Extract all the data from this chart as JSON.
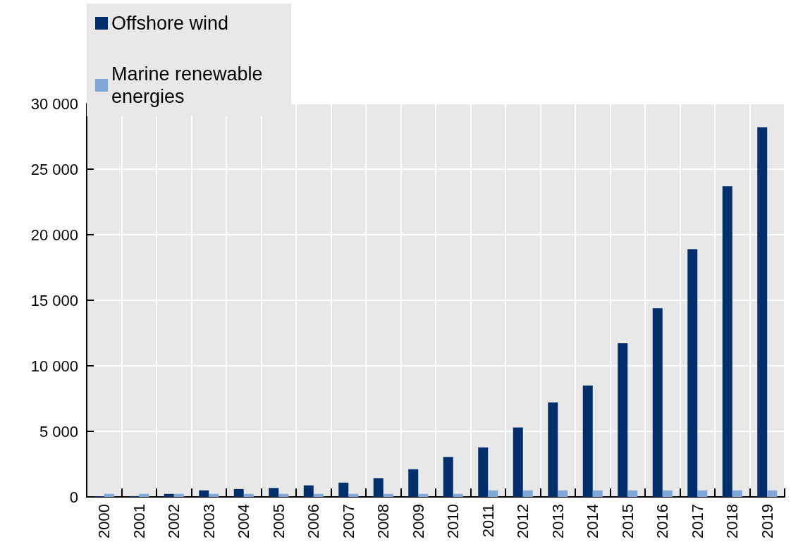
{
  "chart_data": {
    "type": "bar",
    "categories": [
      "2000",
      "2001",
      "2002",
      "2003",
      "2004",
      "2005",
      "2006",
      "2007",
      "2008",
      "2009",
      "2010",
      "2011",
      "2012",
      "2013",
      "2014",
      "2015",
      "2016",
      "2017",
      "2018",
      "2019"
    ],
    "series": [
      {
        "name": "Offshore wind",
        "color": "#002f6c",
        "values": [
          50,
          60,
          230,
          500,
          600,
          680,
          880,
          1090,
          1430,
          2110,
          3050,
          3780,
          5300,
          7200,
          8490,
          11720,
          14400,
          18900,
          23700,
          28200
        ]
      },
      {
        "name": "Marine renewable energies",
        "color": "#7fa8d9",
        "values": [
          230,
          230,
          230,
          230,
          230,
          230,
          230,
          230,
          230,
          230,
          230,
          500,
          500,
          500,
          500,
          500,
          500,
          500,
          500,
          500
        ]
      }
    ],
    "ylim": [
      0,
      30000
    ],
    "yticks": [
      0,
      5000,
      10000,
      15000,
      20000,
      25000,
      30000
    ],
    "grid": true,
    "legend": "top left"
  }
}
